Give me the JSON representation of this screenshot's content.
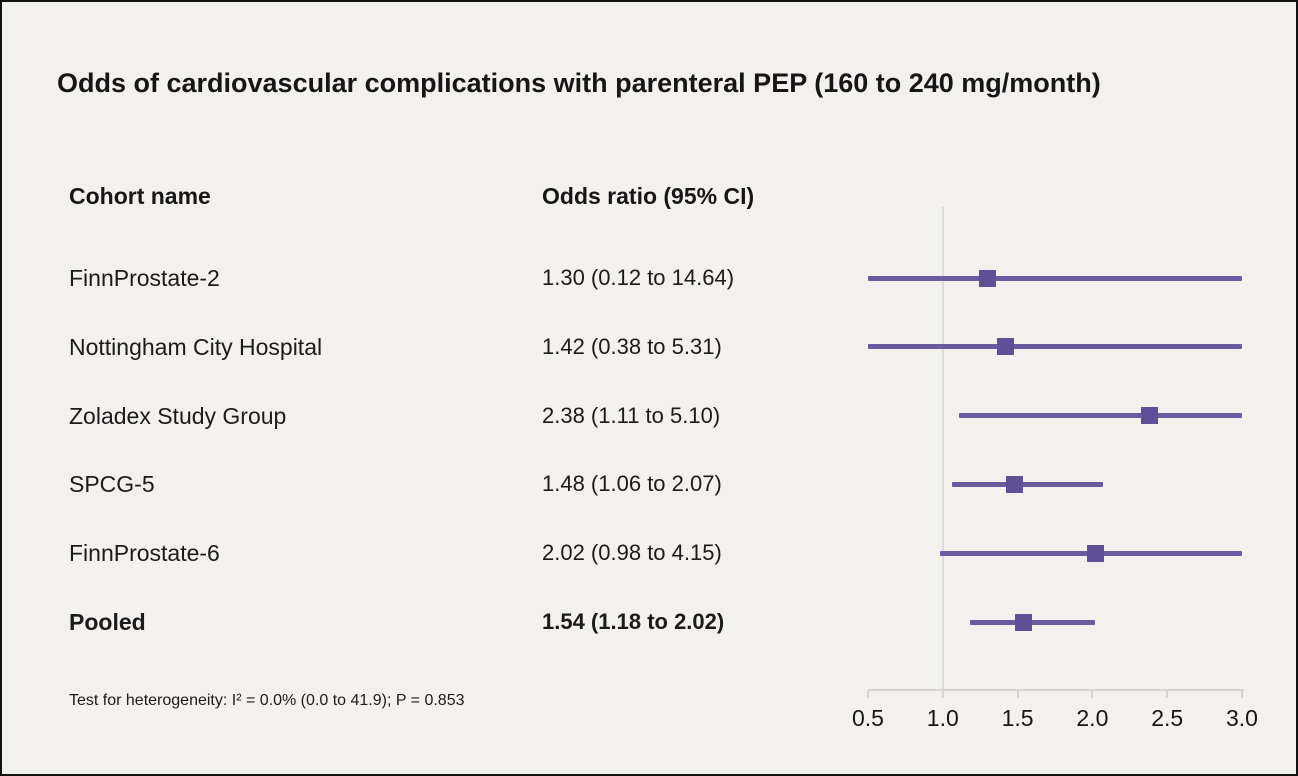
{
  "page": {
    "title": "Odds of cardiovascular complications with parenteral PEP (160 to 240 mg/month)",
    "footnote": "Test for heterogeneity: I² = 0.0% (0.0 to 41.9); P = 0.853"
  },
  "table": {
    "col1_header": "Cohort name",
    "col2_header": "Odds ratio (95% CI)"
  },
  "chart_data": {
    "type": "forest",
    "title": "Odds of cardiovascular complications with parenteral PEP (160 to 240 mg/month)",
    "xlabel": "Odds ratio",
    "axis": {
      "min": 0.5,
      "max": 3.0,
      "ticks": [
        0.5,
        1.0,
        1.5,
        2.0,
        2.5,
        3.0
      ],
      "tick_labels": [
        "0.5",
        "1.0",
        "1.5",
        "2.0",
        "2.5",
        "3.0"
      ],
      "reference_line": 1.0,
      "scale": "linear",
      "clip_to_range": true,
      "grid": false
    },
    "rows": [
      {
        "label": "FinnProstate-2",
        "display": "1.30 (0.12 to 14.64)",
        "or": 1.3,
        "ci_low": 0.12,
        "ci_high": 14.64,
        "bold": false
      },
      {
        "label": "Nottingham City Hospital",
        "display": "1.42 (0.38 to 5.31)",
        "or": 1.42,
        "ci_low": 0.38,
        "ci_high": 5.31,
        "bold": false
      },
      {
        "label": "Zoladex Study Group",
        "display": "2.38 (1.11 to 5.10)",
        "or": 2.38,
        "ci_low": 1.11,
        "ci_high": 5.1,
        "bold": false
      },
      {
        "label": "SPCG-5",
        "display": "1.48 (1.06 to 2.07)",
        "or": 1.48,
        "ci_low": 1.06,
        "ci_high": 2.07,
        "bold": false
      },
      {
        "label": "FinnProstate-6",
        "display": "2.02 (0.98 to 4.15)",
        "or": 2.02,
        "ci_low": 0.98,
        "ci_high": 4.15,
        "bold": false
      },
      {
        "label": "Pooled",
        "display": "1.54 (1.18 to 2.02)",
        "or": 1.54,
        "ci_low": 1.18,
        "ci_high": 2.02,
        "bold": true
      }
    ],
    "heterogeneity_note": "Test for heterogeneity: I² = 0.0% (0.0 to 41.9); P = 0.853",
    "colors": {
      "ci_line": "#6a5ba0",
      "marker": "#5f4f97",
      "reference_line": "#dcdae3",
      "axis": "#d6d4d1",
      "background": "#f2f1ee",
      "text": "#1b1b1b"
    },
    "legend": null
  }
}
